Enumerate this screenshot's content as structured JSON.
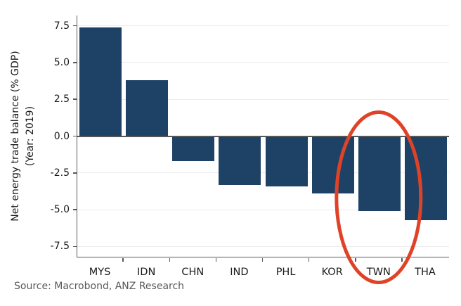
{
  "chart_data": {
    "type": "bar",
    "title": "",
    "ylabel_line1": "Net energy trade balance (% GDP)",
    "ylabel_line2": "(Year: 2019)",
    "xlabel": "",
    "categories": [
      "MYS",
      "IDN",
      "CHN",
      "IND",
      "PHL",
      "KOR",
      "TWN",
      "THA"
    ],
    "values": [
      7.4,
      3.8,
      -1.7,
      -3.3,
      -3.4,
      -3.9,
      -5.1,
      -5.7
    ],
    "unit": "% of GDP",
    "year": "2019",
    "y_ticks": [
      7.5,
      5.0,
      2.5,
      0.0,
      -2.5,
      -5.0,
      -7.5
    ],
    "y_tick_labels": [
      "7.5",
      "5.0",
      "2.5",
      "0.0",
      "-2.5",
      "-5.0",
      "-7.5"
    ],
    "ylim": [
      -8.2,
      8.2
    ],
    "grid": "horizontal",
    "legend": "none",
    "bar_color": "#1d4265",
    "annotation": {
      "shape": "ellipse",
      "target_category": "TWN",
      "target_index": 6,
      "color": "#df4327"
    }
  },
  "colors": {
    "bar": "#1d4265",
    "axis": "#58595b",
    "grid": "#ececec",
    "zero_line": "#55565a",
    "tick_text": "#1a1a1a",
    "annotation_red": "#df4327",
    "source_text": "#58595b",
    "background": "#ffffff"
  },
  "source": {
    "text": "Source: Macrobond, ANZ Research"
  }
}
